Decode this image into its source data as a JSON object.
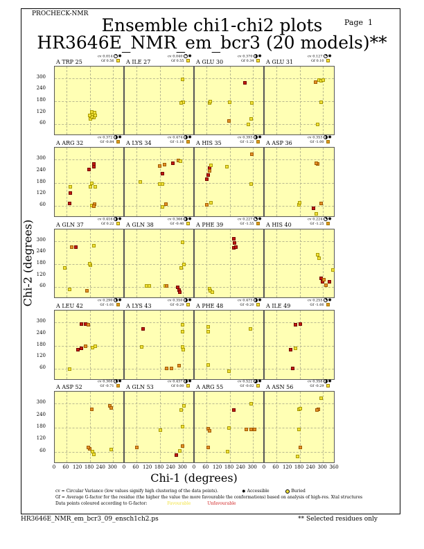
{
  "header": {
    "program": "PROCHECK-NMR",
    "page_label": "Page",
    "page_number": "1",
    "title_line1": "Ensemble chi1-chi2 plots",
    "title_line2": "HR3646E_NMR_em_bcr3 (20 models)**"
  },
  "chart_data": {
    "type": "scatter",
    "title": "Ensemble chi1-chi2 plots",
    "xlabel": "Chi-1 (degrees)",
    "ylabel": "Chi-2 (degrees)",
    "xlim": [
      0,
      360
    ],
    "ylim": [
      0,
      360
    ],
    "x_ticks": [
      "0",
      "60",
      "120",
      "180",
      "240",
      "300"
    ],
    "x_end_tick": "360",
    "y_ticks": [
      "60",
      "120",
      "180",
      "240",
      "300"
    ],
    "grid": "dashed at 60, 180, 300",
    "colors": {
      "Y": "#f2e23a",
      "O": "#e59028",
      "R": "#c41a10"
    },
    "panels": [
      {
        "label": "A TRP 25",
        "cv": "cv 0.014",
        "gf": "Gf 0.56",
        "gf_color": "#f2e23a",
        "cvf": 0.1,
        "points": [
          [
            190,
            125,
            "Y"
          ],
          [
            195,
            110,
            "Y"
          ],
          [
            200,
            95,
            "Y"
          ],
          [
            185,
            90,
            "Y"
          ],
          [
            205,
            120,
            "Y"
          ],
          [
            190,
            100,
            "Y"
          ],
          [
            210,
            105,
            "Y"
          ],
          [
            180,
            108,
            "Y"
          ]
        ]
      },
      {
        "label": "A ILE 27",
        "cv": "cv 0.040",
        "gf": "Gf 0.55",
        "gf_color": "#f2e23a",
        "cvf": 0.1,
        "points": [
          [
            296,
            295,
            "Y"
          ],
          [
            296,
            173,
            "Y"
          ],
          [
            300,
            176,
            "Y"
          ],
          [
            292,
            170,
            "Y"
          ]
        ]
      },
      {
        "label": "A GLU 30",
        "cv": "cv 0.370",
        "gf": "Gf 0.34",
        "gf_color": "#f2e23a",
        "cvf": 0.5,
        "points": [
          [
            78,
            170,
            "Y"
          ],
          [
            80,
            180,
            "Y"
          ],
          [
            180,
            173,
            "Y"
          ],
          [
            257,
            277,
            "R"
          ],
          [
            178,
            76,
            "O"
          ],
          [
            278,
            61,
            "Y"
          ],
          [
            292,
            90,
            "Y"
          ],
          [
            295,
            170,
            "Y"
          ]
        ]
      },
      {
        "label": "A GLU 31",
        "cv": "cv 0.127",
        "gf": "Gf 0.10",
        "gf_color": "#f2e23a",
        "cvf": 0.2,
        "points": [
          [
            263,
            280,
            "O"
          ],
          [
            280,
            290,
            "Y"
          ],
          [
            290,
            285,
            "Y"
          ],
          [
            300,
            290,
            "Y"
          ],
          [
            290,
            173,
            "Y"
          ],
          [
            271,
            61,
            "Y"
          ]
        ]
      },
      {
        "label": "A ARG 32",
        "cv": "cv 0.372",
        "gf": "Gf -0.84",
        "gf_color": "#e59028",
        "cvf": 0.5,
        "points": [
          [
            203,
            277,
            "R"
          ],
          [
            178,
            248,
            "R"
          ],
          [
            200,
            263,
            "R"
          ],
          [
            81,
            158,
            "Y"
          ],
          [
            80,
            126,
            "R"
          ],
          [
            75,
            72,
            "R"
          ],
          [
            190,
            176,
            "Y"
          ],
          [
            184,
            157,
            "Y"
          ],
          [
            208,
            158,
            "Y"
          ],
          [
            190,
            62,
            "Y"
          ],
          [
            205,
            68,
            "O"
          ],
          [
            200,
            58,
            "O"
          ]
        ]
      },
      {
        "label": "A LYS 34",
        "cv": "cv 0.474",
        "gf": "Gf -1.16",
        "gf_color": "#e59028",
        "cvf": 0.5,
        "points": [
          [
            181,
            266,
            "O"
          ],
          [
            204,
            274,
            "O"
          ],
          [
            246,
            281,
            "R"
          ],
          [
            276,
            295,
            "O"
          ],
          [
            288,
            292,
            "Y"
          ],
          [
            193,
            227,
            "R"
          ],
          [
            80,
            183,
            "Y"
          ],
          [
            180,
            173,
            "Y"
          ],
          [
            193,
            173,
            "Y"
          ],
          [
            193,
            54,
            "Y"
          ],
          [
            211,
            68,
            "O"
          ]
        ]
      },
      {
        "label": "A HIS 35",
        "cv": "cv 0.393",
        "gf": "Gf -1.22",
        "gf_color": "#e59028",
        "cvf": 0.5,
        "points": [
          [
            64,
            198,
            "R"
          ],
          [
            70,
            220,
            "R"
          ],
          [
            75,
            255,
            "R"
          ],
          [
            78,
            240,
            "O"
          ],
          [
            82,
            270,
            "Y"
          ],
          [
            167,
            263,
            "Y"
          ],
          [
            82,
            76,
            "Y"
          ],
          [
            64,
            65,
            "O"
          ],
          [
            295,
            327,
            "O"
          ],
          [
            292,
            173,
            "Y"
          ]
        ]
      },
      {
        "label": "A ASP 36",
        "cv": "cv 0.353",
        "gf": "Gf -1.00",
        "gf_color": "#e59028",
        "cvf": 0.5,
        "points": [
          [
            274,
            275,
            "O"
          ],
          [
            265,
            280,
            "O"
          ],
          [
            175,
            65,
            "Y"
          ],
          [
            180,
            75,
            "Y"
          ],
          [
            253,
            47,
            "R"
          ],
          [
            289,
            72,
            "O"
          ],
          [
            264,
            18,
            "Y"
          ]
        ]
      },
      {
        "label": "A GLN 37",
        "cv": "cv 0.416",
        "gf": "Gf 0.22",
        "gf_color": "#f2e23a",
        "cvf": 0.5,
        "points": [
          [
            89,
            270,
            "O"
          ],
          [
            107,
            270,
            "R"
          ],
          [
            53,
            162,
            "Y"
          ],
          [
            185,
            176,
            "Y"
          ],
          [
            180,
            183,
            "Y"
          ],
          [
            203,
            277,
            "Y"
          ],
          [
            78,
            47,
            "Y"
          ],
          [
            167,
            43,
            "O"
          ]
        ]
      },
      {
        "label": "A GLN 38",
        "cv": "cv 0.366",
        "gf": "Gf -0.40",
        "gf_color": "#f2e23a",
        "cvf": 0.5,
        "points": [
          [
            296,
            292,
            "Y"
          ],
          [
            303,
            180,
            "Y"
          ],
          [
            289,
            162,
            "Y"
          ],
          [
            207,
            68,
            "Y"
          ],
          [
            215,
            65,
            "O"
          ],
          [
            271,
            61,
            "R"
          ],
          [
            280,
            45,
            "R"
          ],
          [
            282,
            36,
            "R"
          ],
          [
            111,
            68,
            "Y"
          ],
          [
            128,
            66,
            "Y"
          ]
        ]
      },
      {
        "label": "A PHE 39",
        "cv": "cv 0.227",
        "gf": "Gf -1.55",
        "gf_color": "#e59028",
        "cvf": 0.3,
        "points": [
          [
            203,
            263,
            "R"
          ],
          [
            205,
            290,
            "R"
          ],
          [
            203,
            313,
            "R"
          ],
          [
            212,
            270,
            "R"
          ],
          [
            75,
            54,
            "Y"
          ],
          [
            80,
            40,
            "Y"
          ],
          [
            90,
            36,
            "Y"
          ]
        ]
      },
      {
        "label": "A HIS 40",
        "cv": "cv 0.224",
        "gf": "Gf -1.25",
        "gf_color": "#e59028",
        "cvf": 0.3,
        "points": [
          [
            271,
            230,
            "Y"
          ],
          [
            281,
            209,
            "Y"
          ],
          [
            289,
            108,
            "R"
          ],
          [
            299,
            90,
            "R"
          ],
          [
            317,
            72,
            "O"
          ],
          [
            335,
            90,
            "R"
          ],
          [
            305,
            100,
            "O"
          ],
          [
            350,
            148,
            "Y"
          ]
        ]
      },
      {
        "label": "A LEU 42",
        "cv": "cv 0.290",
        "gf": "Gf -1.01",
        "gf_color": "#e59028",
        "cvf": 0.4,
        "points": [
          [
            139,
            292,
            "R"
          ],
          [
            157,
            292,
            "R"
          ],
          [
            174,
            288,
            "O"
          ],
          [
            121,
            158,
            "R"
          ],
          [
            139,
            165,
            "R"
          ],
          [
            160,
            178,
            "O"
          ],
          [
            196,
            170,
            "Y"
          ],
          [
            210,
            178,
            "Y"
          ],
          [
            78,
            58,
            "Y"
          ]
        ]
      },
      {
        "label": "A LYS 43",
        "cv": "cv 0.350",
        "gf": "Gf -0.29",
        "gf_color": "#f2e23a",
        "cvf": 0.5,
        "points": [
          [
            93,
            266,
            "R"
          ],
          [
            89,
            173,
            "Y"
          ],
          [
            296,
            288,
            "Y"
          ],
          [
            296,
            250,
            "Y"
          ],
          [
            296,
            173,
            "Y"
          ],
          [
            300,
            160,
            "Y"
          ],
          [
            281,
            76,
            "O"
          ],
          [
            217,
            61,
            "O"
          ],
          [
            240,
            62,
            "O"
          ]
        ]
      },
      {
        "label": "A PHE 48",
        "cv": "cv 0.473",
        "gf": "Gf -0.20",
        "gf_color": "#f2e23a",
        "cvf": 0.5,
        "points": [
          [
            71,
            277,
            "Y"
          ],
          [
            68,
            252,
            "Y"
          ],
          [
            68,
            79,
            "Y"
          ],
          [
            178,
            47,
            "Y"
          ],
          [
            288,
            266,
            "Y"
          ]
        ]
      },
      {
        "label": "A ILE 49",
        "cv": "cv 0.255",
        "gf": "Gf -1.66",
        "gf_color": "#e59028",
        "cvf": 0.3,
        "points": [
          [
            157,
            288,
            "R"
          ],
          [
            182,
            290,
            "R"
          ],
          [
            135,
            158,
            "R"
          ],
          [
            157,
            165,
            "Y"
          ],
          [
            143,
            61,
            "R"
          ]
        ]
      },
      {
        "label": "A ASP 52",
        "cv": "cv 0.308",
        "gf": "Gf -0.71",
        "gf_color": "#e59028",
        "cvf": 0.4,
        "points": [
          [
            189,
            271,
            "O"
          ],
          [
            180,
            76,
            "O"
          ],
          [
            195,
            60,
            "Y"
          ],
          [
            200,
            47,
            "Y"
          ],
          [
            285,
            288,
            "O"
          ],
          [
            292,
            280,
            "O"
          ],
          [
            174,
            82,
            "O"
          ],
          [
            292,
            72,
            "Y"
          ]
        ]
      },
      {
        "label": "A GLN 53",
        "cv": "cv 0.437",
        "gf": "Gf 0.00",
        "gf_color": "#f2e23a",
        "cvf": 0.5,
        "points": [
          [
            289,
            270,
            "Y"
          ],
          [
            303,
            290,
            "Y"
          ],
          [
            296,
            184,
            "Y"
          ],
          [
            182,
            169,
            "Y"
          ],
          [
            296,
            90,
            "O"
          ],
          [
            285,
            65,
            "Y"
          ],
          [
            267,
            43,
            "R"
          ],
          [
            64,
            83,
            "O"
          ]
        ]
      },
      {
        "label": "A ARG 55",
        "cv": "cv 0.522",
        "gf": "Gf -0.02",
        "gf_color": "#f2e23a",
        "cvf": 0.6,
        "points": [
          [
            71,
            176,
            "O"
          ],
          [
            75,
            165,
            "O"
          ],
          [
            267,
            173,
            "O"
          ],
          [
            292,
            173,
            "O"
          ],
          [
            310,
            170,
            "O"
          ],
          [
            200,
            270,
            "R"
          ],
          [
            292,
            299,
            "Y"
          ],
          [
            178,
            177,
            "Y"
          ],
          [
            171,
            61,
            "Y"
          ],
          [
            68,
            83,
            "O"
          ]
        ]
      },
      {
        "label": "A ASN 56",
        "cv": "cv 0.358",
        "gf": "Gf -0.29",
        "gf_color": "#f2e23a",
        "cvf": 0.5,
        "points": [
          [
            278,
            271,
            "O"
          ],
          [
            289,
            328,
            "Y"
          ],
          [
            268,
            268,
            "O"
          ],
          [
            175,
            271,
            "Y"
          ],
          [
            182,
            274,
            "Y"
          ],
          [
            175,
            173,
            "Y"
          ],
          [
            182,
            83,
            "O"
          ],
          [
            168,
            36,
            "Y"
          ]
        ]
      }
    ]
  },
  "legend": {
    "cv_text": "cv = Circular Variance (low values signify high clustering of the data points).",
    "accessible": "Accessible",
    "buried": "Buried",
    "gf_text": "Gf = Average G-factor for the residue (the higher the value the more favourable the conformations) based on analysis of high-res. Xtal structures",
    "colour_text": "Data points coloured according to G-factor:",
    "favourable": "Favourable",
    "unfavourable": "Unfavourable"
  },
  "footer": {
    "filename": "HR3646E_NMR_em_bcr3_09_ensch1ch2.ps",
    "note": "** Selected residues only"
  }
}
